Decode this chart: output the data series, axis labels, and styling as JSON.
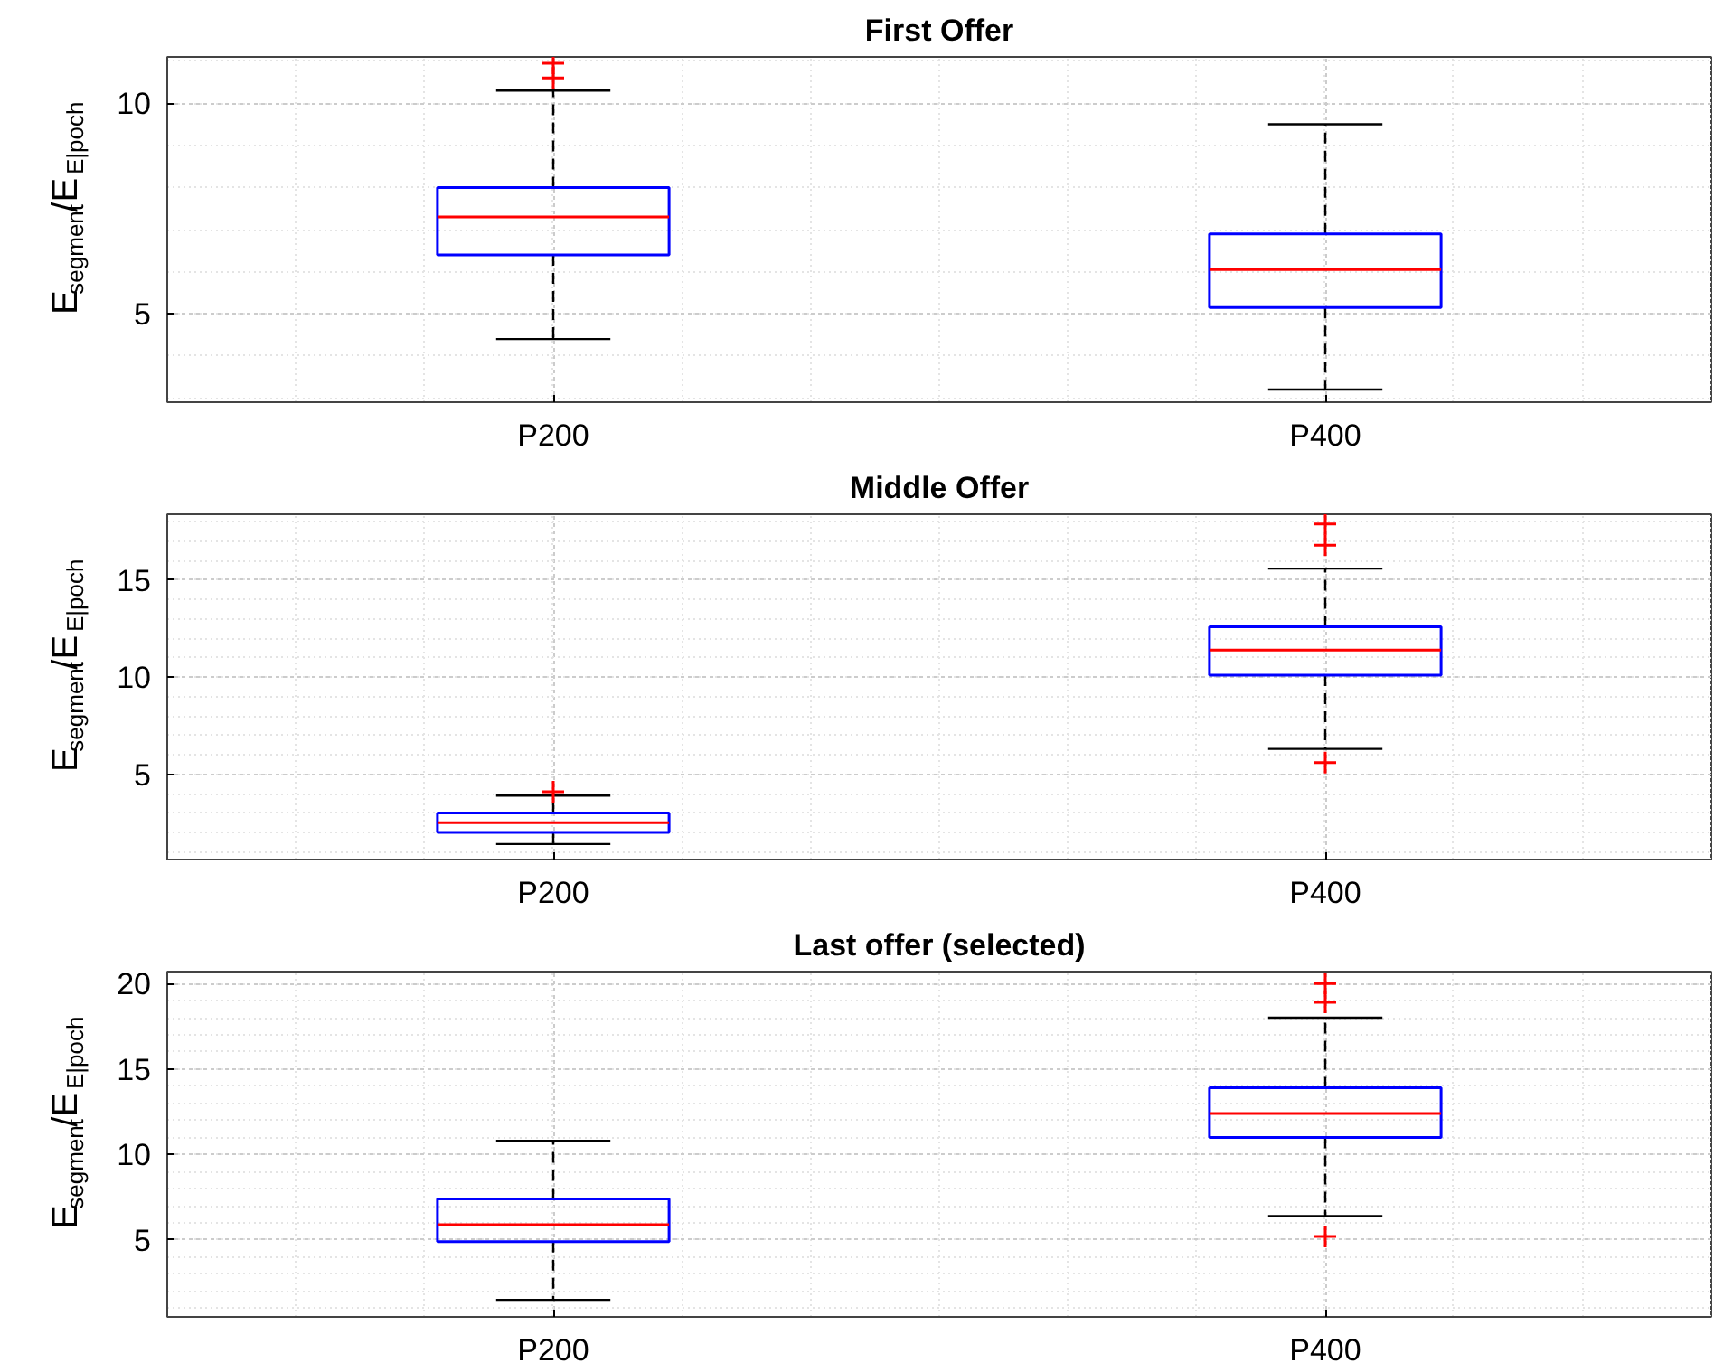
{
  "chart_data": [
    {
      "type": "box",
      "title": "First Offer",
      "ylabel": "E$_{segment}$/E$_{E|poch}$",
      "categories": [
        "P200",
        "P400"
      ],
      "ylim": [
        2.9,
        11.1
      ],
      "yticks": [
        5,
        10
      ],
      "grid": true,
      "series": [
        {
          "color": "#0000ff",
          "boxes": [
            {
              "low": 4.4,
              "q1": 6.4,
              "median": 7.3,
              "q3": 8.0,
              "high": 10.3,
              "outliers": [
                10.6,
                10.95
              ]
            },
            {
              "low": 3.2,
              "q1": 5.15,
              "median": 6.05,
              "q3": 6.9,
              "high": 9.5
            }
          ]
        }
      ]
    },
    {
      "type": "box",
      "title": "Middle Offer",
      "ylabel": "E$_{segment}$/E$_{E|poch}$",
      "categories": [
        "P200",
        "P400"
      ],
      "ylim": [
        0.6,
        18.4
      ],
      "yticks": [
        5,
        10,
        15
      ],
      "grid": true,
      "series": [
        {
          "color": "#0000ff",
          "boxes": [
            {
              "low": 1.4,
              "q1": 2.0,
              "median": 2.5,
              "q3": 3.0,
              "high": 3.9,
              "outliers": [
                4.1
              ]
            },
            {
              "low": 6.3,
              "q1": 10.1,
              "median": 11.4,
              "q3": 12.6,
              "high": 15.6,
              "outliers": [
                5.6,
                16.8,
                17.9
              ]
            }
          ]
        }
      ]
    },
    {
      "type": "box",
      "title": "Last offer (selected)",
      "ylabel": "E$_{segment}$/E$_{E|poch}$",
      "categories": [
        "P200",
        "P400"
      ],
      "ylim": [
        0.5,
        20.7
      ],
      "yticks": [
        5,
        10,
        15,
        20
      ],
      "grid": true,
      "series": [
        {
          "color": "#0000ff",
          "boxes": [
            {
              "low": 1.5,
              "q1": 4.9,
              "median": 5.9,
              "q3": 7.4,
              "high": 10.8
            },
            {
              "low": 6.4,
              "q1": 11.0,
              "median": 12.4,
              "q3": 13.9,
              "high": 18.0,
              "outliers": [
                5.2,
                18.9,
                20.0
              ]
            }
          ]
        }
      ]
    }
  ]
}
